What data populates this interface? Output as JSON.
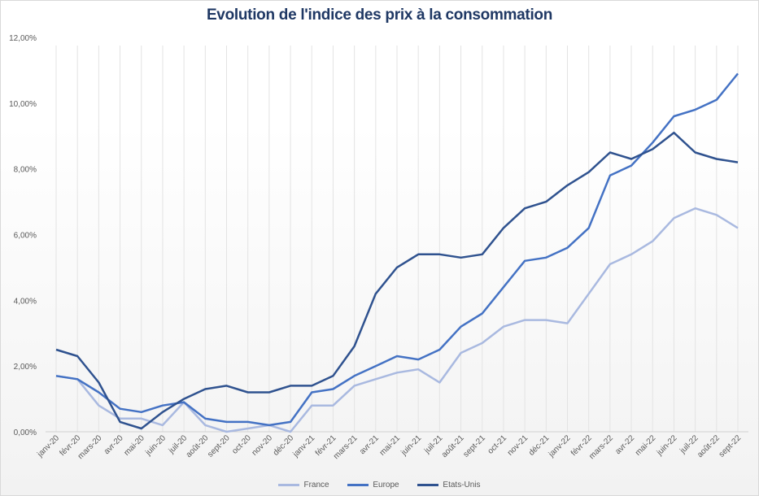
{
  "chart_data": {
    "type": "line",
    "title": "Evolution de l'indice des prix à la consommation",
    "xlabel": "",
    "ylabel": "",
    "ylim": [
      0,
      12
    ],
    "yticks": [
      "0,00%",
      "2,00%",
      "4,00%",
      "6,00%",
      "8,00%",
      "10,00%",
      "12,00%"
    ],
    "grid": "vertical",
    "legend": "bottom",
    "categories": [
      "janv-20",
      "févr-20",
      "mars-20",
      "avr-20",
      "mai-20",
      "juin-20",
      "juil-20",
      "août-20",
      "sept-20",
      "oct-20",
      "nov-20",
      "déc-20",
      "janv-21",
      "févr-21",
      "mars-21",
      "avr-21",
      "mai-21",
      "juin-21",
      "juil-21",
      "août-21",
      "sept-21",
      "oct-21",
      "nov-21",
      "déc-21",
      "janv-22",
      "févr-22",
      "mars-22",
      "avr-22",
      "mai-22",
      "juin-22",
      "juil-22",
      "août-22",
      "sept-22"
    ],
    "series": [
      {
        "name": "France",
        "color": "#a9b9e0",
        "values": [
          1.7,
          1.6,
          0.8,
          0.4,
          0.4,
          0.2,
          0.9,
          0.2,
          0.0,
          0.1,
          0.2,
          0.0,
          0.8,
          0.8,
          1.4,
          1.6,
          1.8,
          1.9,
          1.5,
          2.4,
          2.7,
          3.2,
          3.4,
          3.4,
          3.3,
          4.2,
          5.1,
          5.4,
          5.8,
          6.5,
          6.8,
          6.6,
          6.2
        ]
      },
      {
        "name": "Europe",
        "color": "#4472c4",
        "values": [
          1.7,
          1.6,
          1.2,
          0.7,
          0.6,
          0.8,
          0.9,
          0.4,
          0.3,
          0.3,
          0.2,
          0.3,
          1.2,
          1.3,
          1.7,
          2.0,
          2.3,
          2.2,
          2.5,
          3.2,
          3.6,
          4.4,
          5.2,
          5.3,
          5.6,
          6.2,
          7.8,
          8.1,
          8.8,
          9.6,
          9.8,
          10.1,
          10.9
        ]
      },
      {
        "name": "Etats-Unis",
        "color": "#2f528f",
        "values": [
          2.5,
          2.3,
          1.5,
          0.3,
          0.1,
          0.6,
          1.0,
          1.3,
          1.4,
          1.2,
          1.2,
          1.4,
          1.4,
          1.7,
          2.6,
          4.2,
          5.0,
          5.4,
          5.4,
          5.3,
          5.4,
          6.2,
          6.8,
          7.0,
          7.5,
          7.9,
          8.5,
          8.3,
          8.6,
          9.1,
          8.5,
          8.3,
          8.2
        ]
      }
    ]
  }
}
